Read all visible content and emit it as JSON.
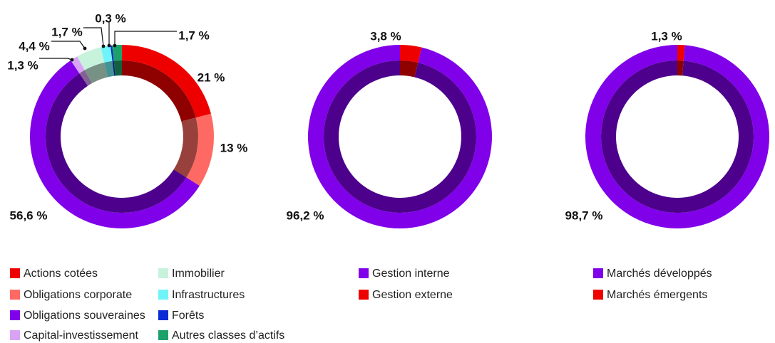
{
  "chart_data": [
    {
      "type": "pie",
      "slices": [
        {
          "category": "Actions cotées",
          "value": 21,
          "label": "21 %",
          "color": "#ee0000"
        },
        {
          "category": "Obligations corporate",
          "value": 13,
          "label": "13 %",
          "color": "#fe6a63"
        },
        {
          "category": "Obligations souveraines",
          "value": 56.6,
          "label": "56,6 %",
          "color": "#8000ea"
        },
        {
          "category": "Capital-investissement",
          "value": 1.3,
          "label": "1,3 %",
          "color": "#d8a3f5"
        },
        {
          "category": "Immobilier",
          "value": 4.4,
          "label": "4,4 %",
          "color": "#c7f2dc"
        },
        {
          "category": "Infrastructures",
          "value": 1.7,
          "label": "1,7 %",
          "color": "#6ff4f9"
        },
        {
          "category": "Forêts",
          "value": 0.3,
          "label": "0,3 %",
          "color": "#0a2bd6"
        },
        {
          "category": "Autres classes d'actifs",
          "value": 1.7,
          "label": "1,7 %",
          "color": "#1da16a"
        }
      ]
    },
    {
      "type": "pie",
      "slices": [
        {
          "category": "Gestion interne",
          "value": 96.2,
          "label": "96,2 %",
          "color": "#8000ea"
        },
        {
          "category": "Gestion externe",
          "value": 3.8,
          "label": "3,8 %",
          "color": "#ee0000"
        }
      ]
    },
    {
      "type": "pie",
      "slices": [
        {
          "category": "Marchés développés",
          "value": 98.7,
          "label": "98,7 %",
          "color": "#8000ea"
        },
        {
          "category": "Marchés émergents",
          "value": 1.3,
          "label": "1,3 %",
          "color": "#ee0000"
        }
      ]
    }
  ],
  "legends": [
    [
      {
        "label": "Actions cotées",
        "color": "#ee0000"
      },
      {
        "label": "Obligations corporate",
        "color": "#fe6a63"
      },
      {
        "label": "Obligations souveraines",
        "color": "#8000ea"
      },
      {
        "label": "Capital-investissement",
        "color": "#d8a3f5"
      },
      {
        "label": "Immobilier",
        "color": "#c7f2dc"
      },
      {
        "label": "Infrastructures",
        "color": "#6ff4f9"
      },
      {
        "label": "Forêts",
        "color": "#0a2bd6"
      },
      {
        "label": "Autres classes d’actifs",
        "color": "#1da16a"
      }
    ],
    [
      {
        "label": "Gestion interne",
        "color": "#8000ea"
      },
      {
        "label": "Gestion externe",
        "color": "#ee0000"
      }
    ],
    [
      {
        "label": "Marchés développés",
        "color": "#8000ea"
      },
      {
        "label": "Marchés émergents",
        "color": "#ee0000"
      }
    ]
  ]
}
